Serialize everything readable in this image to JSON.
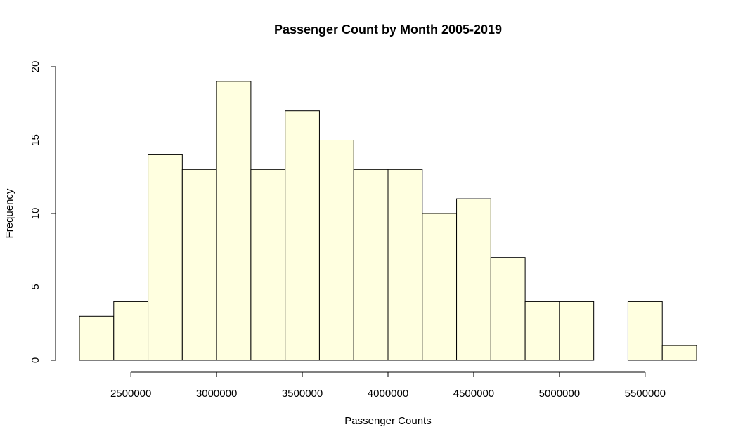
{
  "chart_data": {
    "type": "bar",
    "title": "Passenger Count by Month 2005-2019",
    "xlabel": "Passenger Counts",
    "ylabel": "Frequency",
    "bin_edges": [
      2200000,
      2400000,
      2600000,
      2800000,
      3000000,
      3200000,
      3400000,
      3600000,
      3800000,
      4000000,
      4200000,
      4400000,
      4600000,
      4800000,
      5000000,
      5200000,
      5400000,
      5600000,
      5800000
    ],
    "values": [
      3,
      4,
      14,
      13,
      19,
      13,
      17,
      15,
      13,
      13,
      10,
      11,
      7,
      4,
      4,
      0,
      4,
      1
    ],
    "xlim": [
      2200000,
      5800000
    ],
    "x_axis_range": [
      2500000,
      5500000
    ],
    "x_ticks": [
      2500000,
      3000000,
      3500000,
      4000000,
      4500000,
      5000000,
      5500000
    ],
    "x_tick_labels": [
      "2500000",
      "3000000",
      "3500000",
      "4000000",
      "4500000",
      "5000000",
      "5500000"
    ],
    "ylim": [
      0,
      20
    ],
    "y_ticks": [
      0,
      5,
      10,
      15,
      20
    ],
    "y_tick_labels": [
      "0",
      "5",
      "10",
      "15",
      "20"
    ],
    "bar_color": "#FFFFE0",
    "edge_color": "#000000",
    "grid": false,
    "legend": "none"
  }
}
